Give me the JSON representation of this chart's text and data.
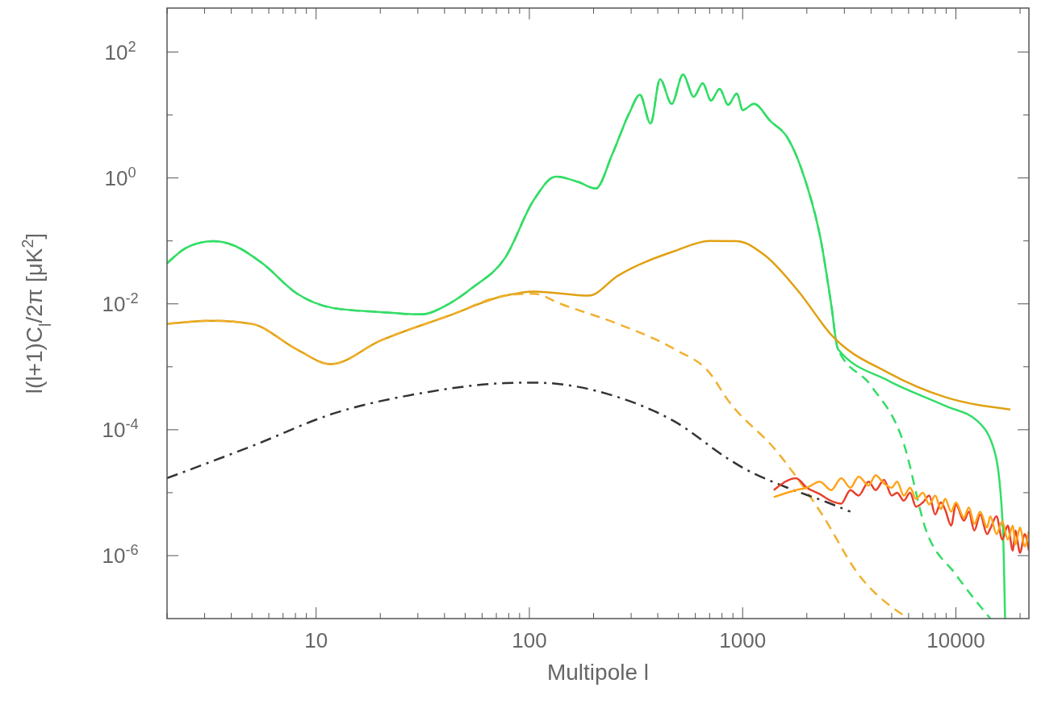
{
  "chart_data": {
    "type": "line",
    "xlabel": "Multipole l",
    "ylabel": "l(l+1)C$_{l}$/2π   [μK$^{2}$]",
    "log": "xy",
    "grid": false,
    "xlim": [
      2,
      22000
    ],
    "ylim": [
      1e-07,
      500
    ],
    "xticks": [
      {
        "value": 2,
        "label": null
      },
      {
        "value": 3,
        "label": null
      },
      {
        "value": 4,
        "label": null
      },
      {
        "value": 5,
        "label": null
      },
      {
        "value": 6,
        "label": null
      },
      {
        "value": 7,
        "label": null
      },
      {
        "value": 8,
        "label": null
      },
      {
        "value": 9,
        "label": null
      },
      10,
      {
        "value": 20,
        "label": null
      },
      {
        "value": 30,
        "label": null
      },
      {
        "value": 40,
        "label": null
      },
      {
        "value": 50,
        "label": null
      },
      {
        "value": 60,
        "label": null
      },
      {
        "value": 70,
        "label": null
      },
      {
        "value": 80,
        "label": null
      },
      {
        "value": 90,
        "label": null
      },
      100,
      {
        "value": 200,
        "label": null
      },
      {
        "value": 300,
        "label": null
      },
      {
        "value": 400,
        "label": null
      },
      {
        "value": 500,
        "label": null
      },
      {
        "value": 600,
        "label": null
      },
      {
        "value": 700,
        "label": null
      },
      {
        "value": 800,
        "label": null
      },
      {
        "value": 900,
        "label": null
      },
      1000,
      {
        "value": 2000,
        "label": null
      },
      {
        "value": 3000,
        "label": null
      },
      {
        "value": 4000,
        "label": null
      },
      {
        "value": 5000,
        "label": null
      },
      {
        "value": 6000,
        "label": null
      },
      {
        "value": 7000,
        "label": null
      },
      {
        "value": 8000,
        "label": null
      },
      {
        "value": 9000,
        "label": null
      },
      10000,
      {
        "value": 20000,
        "label": null
      }
    ],
    "yticks": [
      {
        "value": 100,
        "label": "10$^{2}$"
      },
      {
        "value": 10,
        "label": null
      },
      {
        "value": 1,
        "label": "10$^{0}$"
      },
      {
        "value": 0.1,
        "label": null
      },
      {
        "value": 0.01,
        "label": "10$^{-2}$"
      },
      {
        "value": 0.001,
        "label": null
      },
      {
        "value": 0.0001,
        "label": "10$^{-4}$"
      },
      {
        "value": 1e-05,
        "label": null
      },
      {
        "value": 1e-06,
        "label": "10$^{-6}$"
      }
    ],
    "series": [
      {
        "color": "#33dd66",
        "line_style": "solid",
        "x": [
          2,
          2.5,
          3.3,
          4.1,
          5.6,
          8.1,
          12,
          20,
          31,
          42,
          54,
          77,
          105,
          133,
          170,
          205,
          245,
          295,
          330,
          370,
          410,
          465,
          525,
          590,
          650,
          710,
          780,
          855,
          940,
          1000,
          1130,
          1350,
          1620,
          1950,
          2330,
          2600,
          2800,
          4830,
          8900,
          12700,
          15300,
          16600,
          17000
        ],
        "values": [
          0.044,
          0.08,
          0.099,
          0.085,
          0.044,
          0.0147,
          0.0086,
          0.0074,
          0.0068,
          0.01,
          0.018,
          0.054,
          0.45,
          1.05,
          0.86,
          0.68,
          2.4,
          11,
          21,
          7.3,
          37,
          15,
          44,
          19.5,
          32,
          17,
          26,
          14.5,
          22,
          12,
          15,
          8,
          4.4,
          1,
          0.1,
          0.01,
          0.0019,
          0.0006,
          0.00024,
          0.000135,
          4.1e-05,
          2.8e-06,
          1e-07
        ]
      },
      {
        "color": "#33dd66",
        "line_style": "dashed",
        "x": [
          2,
          2.5,
          3.3,
          4.1,
          5.6,
          8.1,
          12,
          20,
          31,
          42,
          54,
          77,
          105,
          133,
          170,
          205,
          245,
          295,
          330,
          370,
          410,
          465,
          525,
          590,
          650,
          710,
          780,
          855,
          940,
          1000,
          1130,
          1350,
          1620,
          1950,
          2330,
          2600,
          2800,
          4000,
          5700,
          7200,
          10000,
          14500
        ],
        "values": [
          0.044,
          0.08,
          0.099,
          0.085,
          0.044,
          0.0147,
          0.0086,
          0.0074,
          0.0068,
          0.01,
          0.018,
          0.054,
          0.45,
          1.05,
          0.86,
          0.68,
          2.4,
          11,
          21,
          7.3,
          37,
          15,
          44,
          19.5,
          32,
          17,
          26,
          14.5,
          22,
          12,
          15,
          8,
          4.4,
          1,
          0.1,
          0.01,
          0.0019,
          0.0005,
          6e-05,
          2.7e-06,
          5e-07,
          1e-07
        ]
      },
      {
        "color": "#e0a010",
        "line_style": "solid",
        "x": [
          2,
          3.3,
          5,
          8.1,
          11.7,
          20,
          42,
          77,
          105,
          190,
          260,
          480,
          700,
          940,
          1270,
          1830,
          2630,
          4830,
          8900,
          18000
        ],
        "values": [
          0.0048,
          0.0054,
          0.0048,
          0.0019,
          0.0011,
          0.0026,
          0.0065,
          0.0135,
          0.0157,
          0.0135,
          0.028,
          0.069,
          0.1,
          0.099,
          0.059,
          0.0157,
          0.0031,
          0.0008,
          0.00033,
          0.00021
        ]
      },
      {
        "color": "#f0b030",
        "line_style": "dashed",
        "x": [
          2,
          3.3,
          5,
          8.1,
          11.7,
          20,
          42,
          77,
          105,
          140,
          260,
          480,
          700,
          850,
          1440,
          2330,
          3500,
          6000
        ],
        "values": [
          0.0048,
          0.0054,
          0.0048,
          0.0019,
          0.0011,
          0.0026,
          0.0065,
          0.0135,
          0.0145,
          0.01,
          0.0048,
          0.0019,
          0.0008,
          0.0003,
          4.6e-05,
          4.8e-06,
          5e-07,
          1e-07
        ]
      },
      {
        "color": "#333333",
        "line_style": "dashdot",
        "x": [
          2,
          5,
          12,
          31,
          77,
          105,
          260,
          480,
          850,
          1000,
          1620,
          2500,
          3200
        ],
        "values": [
          1.7e-05,
          5.5e-05,
          0.00018,
          0.00038,
          0.00055,
          0.00056,
          0.00033,
          0.000135,
          3.5e-05,
          2.5e-05,
          1.2e-05,
          7e-06,
          5e-06
        ]
      },
      {
        "color": "#e8402a",
        "line_style": "solid",
        "x": [
          1400,
          1780,
          2000,
          2300,
          2600,
          2900,
          3200,
          3500,
          3900,
          4200,
          4600,
          5000,
          5300,
          5700,
          6100,
          6500,
          7000,
          7500,
          8000,
          8500,
          8900,
          9500,
          10000,
          10900,
          11500,
          12200,
          13000,
          14000,
          14500,
          15500,
          16500,
          17500,
          18500,
          19000,
          20000,
          21000,
          22000
        ],
        "values": [
          1.1e-05,
          1.7e-05,
          1.2e-05,
          9.5e-06,
          7.4e-06,
          6.7e-06,
          1.1e-05,
          9e-06,
          1.5e-05,
          1.1e-05,
          1.6e-05,
          9e-06,
          1e-05,
          7.5e-06,
          1e-05,
          6e-06,
          7e-06,
          9e-06,
          4.5e-06,
          7e-06,
          5.4e-06,
          3e-06,
          6.5e-06,
          3.6e-06,
          5e-06,
          2.5e-06,
          4.5e-06,
          2.2e-06,
          2.7e-06,
          4.2e-06,
          1.8e-06,
          3e-06,
          1.2e-06,
          2.5e-06,
          1.1e-06,
          2.2e-06,
          1.2e-06
        ]
      },
      {
        "color": "#ffa31a",
        "line_style": "solid",
        "x": [
          1400,
          1780,
          2000,
          2300,
          2600,
          2900,
          3200,
          3500,
          3900,
          4200,
          4600,
          5000,
          5300,
          5700,
          6100,
          6500,
          7000,
          7500,
          8000,
          8500,
          8900,
          9500,
          10000,
          10900,
          11500,
          12200,
          13000,
          14000,
          14500,
          15500,
          16500,
          17500,
          18500,
          19000,
          20000,
          21000,
          22000
        ],
        "values": [
          8.5e-06,
          1.1e-05,
          1.2e-05,
          1.5e-05,
          1.1e-05,
          1.7e-05,
          1.2e-05,
          1.8e-05,
          1.3e-05,
          1.9e-05,
          1.4e-05,
          1.2e-05,
          1.5e-05,
          9e-06,
          1.2e-05,
          8e-06,
          1e-05,
          6.5e-06,
          9e-06,
          5.5e-06,
          8e-06,
          5e-06,
          7e-06,
          4e-06,
          5.8e-06,
          3.2e-06,
          5e-06,
          2.8e-06,
          4.2e-06,
          2.2e-06,
          3.5e-06,
          1.8e-06,
          3e-06,
          1.5e-06,
          2.8e-06,
          1.4e-06,
          2.5e-06
        ]
      }
    ]
  }
}
